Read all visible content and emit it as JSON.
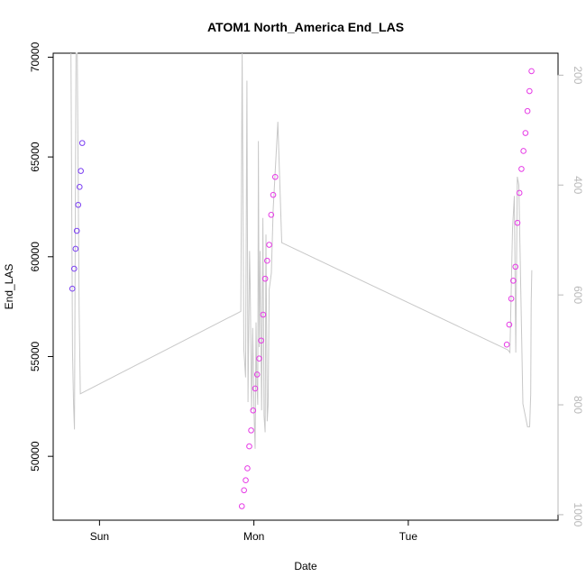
{
  "chart_data": {
    "type": "scatter",
    "title": "ATOM1 North_America End_LAS",
    "xlabel": "Date",
    "ylabel": "End_LAS",
    "x_unit": "days from Sat 00:00",
    "xlim": [
      0.7,
      3.97
    ],
    "ylim": [
      46800,
      70200
    ],
    "y2lim": [
      1010,
      160
    ],
    "x_ticks": [
      {
        "value": 1,
        "label": "Sun"
      },
      {
        "value": 2,
        "label": "Mon"
      },
      {
        "value": 3,
        "label": "Tue"
      }
    ],
    "y_ticks": [
      50000,
      55000,
      60000,
      65000,
      70000
    ],
    "y2_ticks": [
      200,
      400,
      600,
      800,
      1000
    ],
    "grid": false,
    "colors": {
      "line": "#c8c8c8",
      "points_early": "#7b3ff2",
      "points_late": "#e63ae6",
      "right_axis": "#b8b8b8"
    },
    "series": [
      {
        "kind": "line",
        "axis": "right",
        "points": [
          [
            0.815,
            80
          ],
          [
            0.825,
            700
          ],
          [
            0.832,
            800
          ],
          [
            0.838,
            845
          ],
          [
            0.848,
            120
          ],
          [
            0.856,
            120
          ],
          [
            0.868,
            630
          ],
          [
            0.876,
            780
          ],
          [
            1.915,
            630
          ],
          [
            1.924,
            130
          ],
          [
            1.935,
            700
          ],
          [
            1.946,
            750
          ],
          [
            1.955,
            210
          ],
          [
            1.962,
            795
          ],
          [
            1.972,
            520
          ],
          [
            1.976,
            580
          ],
          [
            1.985,
            810
          ],
          [
            1.992,
            660
          ],
          [
            2.001,
            815
          ],
          [
            2.008,
            880
          ],
          [
            2.014,
            650
          ],
          [
            2.019,
            760
          ],
          [
            2.025,
            800
          ],
          [
            2.029,
            320
          ],
          [
            2.034,
            695
          ],
          [
            2.04,
            520
          ],
          [
            2.05,
            810
          ],
          [
            2.058,
            460
          ],
          [
            2.066,
            820
          ],
          [
            2.073,
            850
          ],
          [
            2.078,
            490
          ],
          [
            2.086,
            830
          ],
          [
            2.092,
            800
          ],
          [
            2.099,
            590
          ],
          [
            2.113,
            560
          ],
          [
            2.125,
            445
          ],
          [
            2.155,
            285
          ],
          [
            2.18,
            505
          ],
          [
            3.645,
            700
          ],
          [
            3.658,
            705
          ],
          [
            3.675,
            480
          ],
          [
            3.687,
            420
          ],
          [
            3.696,
            705
          ],
          [
            3.706,
            385
          ],
          [
            3.716,
            400
          ],
          [
            3.742,
            798
          ],
          [
            3.772,
            840
          ],
          [
            3.786,
            840
          ],
          [
            3.793,
            780
          ],
          [
            3.796,
            615
          ],
          [
            3.8,
            555
          ]
        ]
      },
      {
        "kind": "scatter",
        "axis": "left",
        "color": "points_early",
        "points": [
          [
            0.824,
            58400
          ],
          [
            0.836,
            59400
          ],
          [
            0.845,
            60400
          ],
          [
            0.853,
            61300
          ],
          [
            0.862,
            62600
          ],
          [
            0.871,
            63500
          ],
          [
            0.879,
            64300
          ],
          [
            0.888,
            65700
          ]
        ]
      },
      {
        "kind": "scatter",
        "axis": "left",
        "color": "points_late",
        "points": [
          [
            1.922,
            47500
          ],
          [
            1.936,
            48300
          ],
          [
            1.947,
            48800
          ],
          [
            1.958,
            49400
          ],
          [
            1.97,
            50500
          ],
          [
            1.982,
            51300
          ],
          [
            1.995,
            52300
          ],
          [
            2.008,
            53400
          ],
          [
            2.021,
            54100
          ],
          [
            2.034,
            54900
          ],
          [
            2.047,
            55800
          ],
          [
            2.06,
            57100
          ],
          [
            2.073,
            58900
          ],
          [
            2.086,
            59800
          ],
          [
            2.099,
            60600
          ],
          [
            2.112,
            62100
          ],
          [
            2.125,
            63100
          ],
          [
            2.138,
            64000
          ],
          [
            3.638,
            55600
          ],
          [
            3.654,
            56600
          ],
          [
            3.667,
            57900
          ],
          [
            3.68,
            58800
          ],
          [
            3.694,
            59500
          ],
          [
            3.707,
            61700
          ],
          [
            3.72,
            63200
          ],
          [
            3.733,
            64400
          ],
          [
            3.746,
            65300
          ],
          [
            3.759,
            66200
          ],
          [
            3.772,
            67300
          ],
          [
            3.785,
            68300
          ],
          [
            3.798,
            69300
          ]
        ]
      }
    ]
  }
}
